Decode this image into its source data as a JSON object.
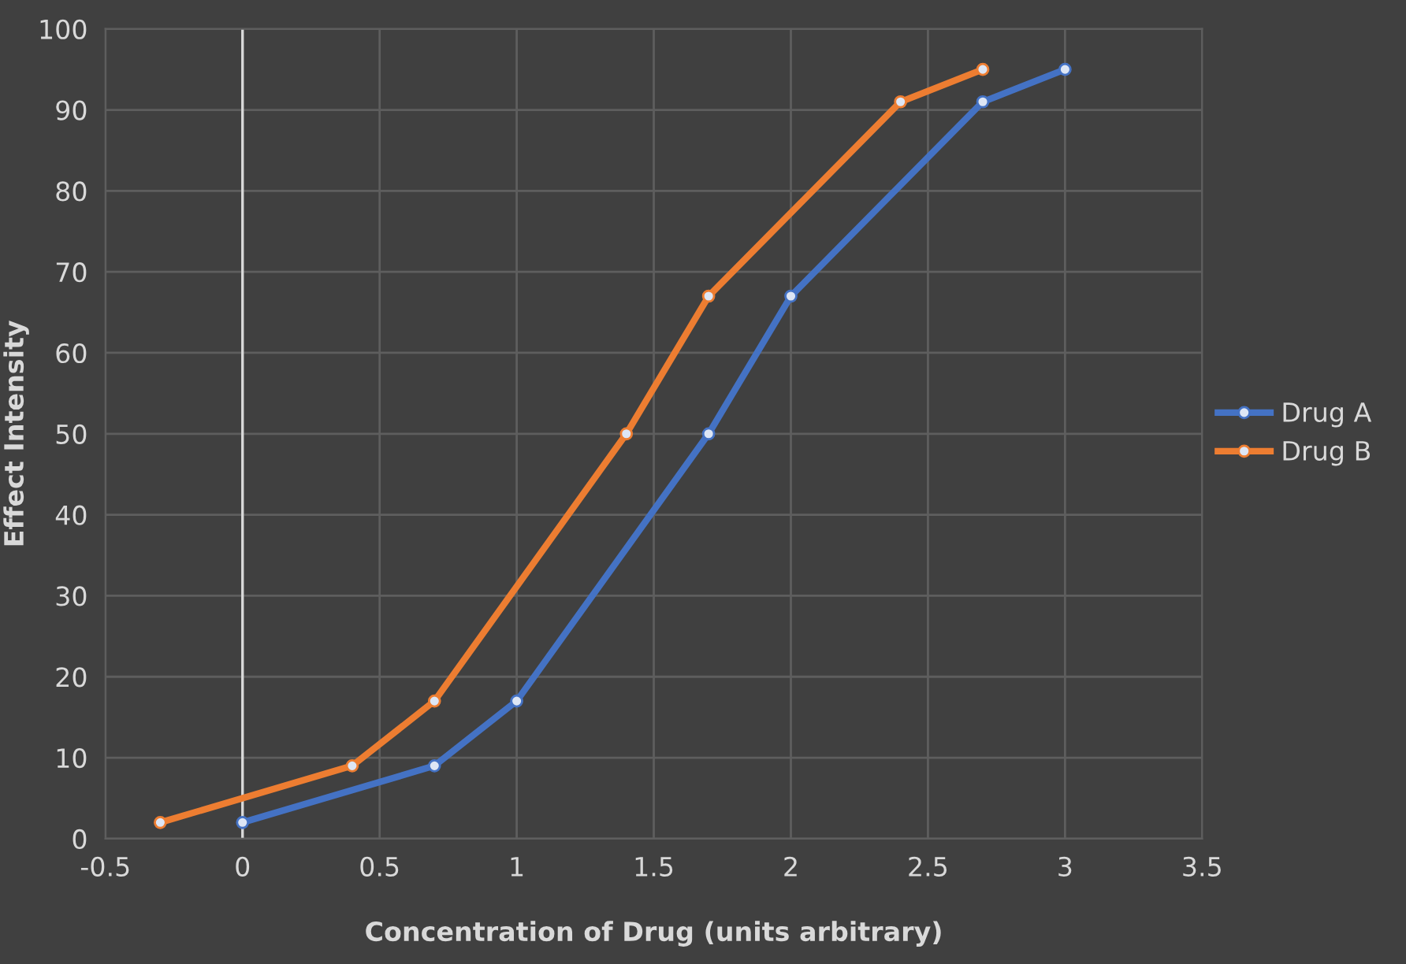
{
  "chart_data": {
    "type": "line",
    "xlabel": "Concentration of Drug (units arbitrary)",
    "ylabel": "Effect Intensity",
    "series": [
      {
        "name": "Drug A",
        "color": "#4472c4",
        "x": [
          0,
          0.7,
          1,
          1.7,
          2,
          2.7,
          3
        ],
        "values": [
          2,
          9,
          17,
          50,
          67,
          91,
          95
        ]
      },
      {
        "name": "Drug B",
        "color": "#ed7d31",
        "x": [
          -0.3,
          0.4,
          0.7,
          1.4,
          1.7,
          2.4,
          2.7
        ],
        "values": [
          2,
          9,
          17,
          50,
          67,
          91,
          95
        ]
      }
    ],
    "xlim": [
      -0.5,
      3.5
    ],
    "xticks": [
      -0.5,
      0,
      0.5,
      1,
      1.5,
      2,
      2.5,
      3,
      3.5
    ],
    "ylim": [
      0,
      100
    ],
    "yticks": [
      0,
      10,
      20,
      30,
      40,
      50,
      60,
      70,
      80,
      90,
      100
    ],
    "grid": true,
    "legend": "right",
    "marker": "circle",
    "line_style": "solid"
  }
}
